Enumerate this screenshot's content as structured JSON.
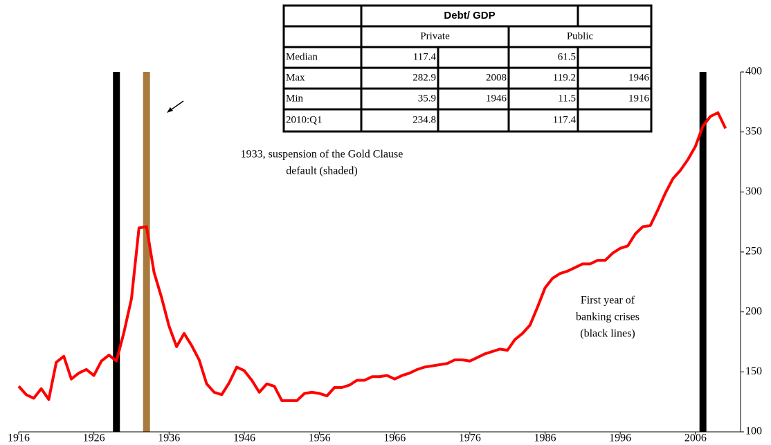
{
  "chart_data": {
    "type": "line",
    "x": [
      1916,
      1917,
      1918,
      1919,
      1920,
      1921,
      1922,
      1923,
      1924,
      1925,
      1926,
      1927,
      1928,
      1929,
      1930,
      1931,
      1932,
      1933,
      1934,
      1935,
      1936,
      1937,
      1938,
      1939,
      1940,
      1941,
      1942,
      1943,
      1944,
      1945,
      1946,
      1947,
      1948,
      1949,
      1950,
      1951,
      1952,
      1953,
      1954,
      1955,
      1956,
      1957,
      1958,
      1959,
      1960,
      1961,
      1962,
      1963,
      1964,
      1965,
      1966,
      1967,
      1968,
      1969,
      1970,
      1971,
      1972,
      1973,
      1974,
      1975,
      1976,
      1977,
      1978,
      1979,
      1980,
      1981,
      1982,
      1983,
      1984,
      1985,
      1986,
      1987,
      1988,
      1989,
      1990,
      1991,
      1992,
      1993,
      1994,
      1995,
      1996,
      1997,
      1998,
      1999,
      2000,
      2001,
      2002,
      2003,
      2004,
      2005,
      2006,
      2007,
      2008,
      2009,
      2010
    ],
    "series": [
      {
        "color": "#ff0000",
        "values": [
          138,
          131,
          128,
          136,
          127,
          158,
          163,
          144,
          149,
          152,
          147,
          159,
          164,
          159,
          183,
          211,
          270,
          271,
          233,
          212,
          188,
          171,
          182,
          172,
          160,
          140,
          133,
          131,
          141,
          154,
          151,
          143,
          133,
          140,
          138,
          126,
          126,
          126,
          132,
          133,
          132,
          130,
          137,
          137,
          139,
          143,
          143,
          146,
          146,
          147,
          144,
          147,
          149,
          152,
          154,
          155,
          156,
          157,
          160,
          160,
          159,
          162,
          165,
          167,
          169,
          168,
          177,
          182,
          189,
          204,
          220,
          228,
          232,
          234,
          237,
          240,
          240,
          243,
          243,
          249,
          253,
          255,
          265,
          271,
          272,
          285,
          299,
          311,
          318,
          327,
          338,
          355,
          363,
          366,
          353
        ]
      }
    ],
    "xlim": [
      1916,
      2012
    ],
    "xticks": [
      1916,
      1926,
      1936,
      1946,
      1956,
      1966,
      1976,
      1986,
      1996,
      2006
    ],
    "ylim": [
      100,
      400
    ],
    "yticks": [
      100,
      150,
      200,
      250,
      300,
      350,
      400
    ],
    "banking_crises": [
      1929,
      2007
    ],
    "banking_crises_color": "#000000",
    "gold_clause_default": 1933,
    "gold_clause_color": "#a87a3e",
    "annotations": [
      {
        "lines": [
          "1933, suspension of the Gold Clause",
          "default (shaded)"
        ]
      },
      {
        "lines": [
          "First year of",
          "banking crises",
          "(black lines)"
        ]
      }
    ],
    "table": {
      "header": "Debt/ GDP",
      "groups": [
        "Private",
        "Public"
      ],
      "rows": [
        [
          "Median",
          117.4,
          null,
          61.5,
          null
        ],
        [
          "Max",
          282.9,
          2008,
          119.2,
          1946
        ],
        [
          "Min",
          35.9,
          1946,
          11.5,
          1916
        ],
        [
          "2010:Q1",
          234.8,
          null,
          117.4,
          null
        ]
      ]
    }
  }
}
